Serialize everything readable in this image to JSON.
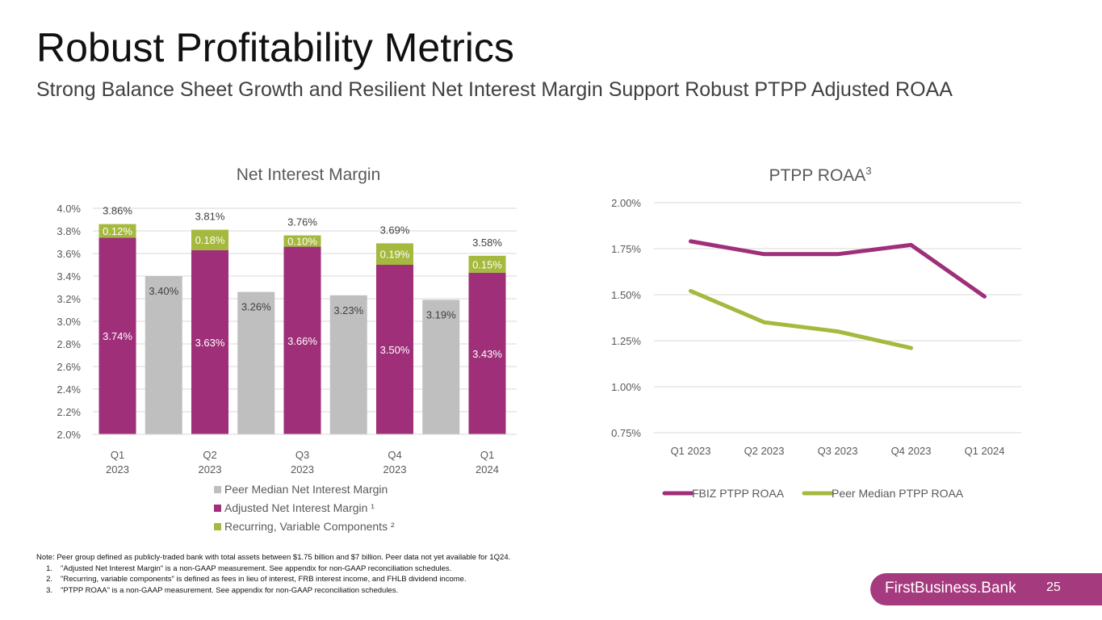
{
  "page": {
    "title": "Robust Profitability Metrics",
    "subtitle": "Strong Balance Sheet Growth and Resilient Net Interest Margin Support Robust PTPP Adjusted ROAA"
  },
  "colors": {
    "magenta": "#9e2f78",
    "green": "#a4b93d",
    "gray": "#bfbfbf",
    "brand_bar": "#a63a7e"
  },
  "chart_data": [
    {
      "type": "bar",
      "title": "Net Interest Margin",
      "ylim": [
        2.0,
        4.0
      ],
      "yticks": [
        "4.0%",
        "3.8%",
        "3.6%",
        "3.4%",
        "3.2%",
        "3.0%",
        "2.8%",
        "2.6%",
        "2.4%",
        "2.2%",
        "2.0%"
      ],
      "categories": [
        {
          "line1": "Q1",
          "line2": "2023"
        },
        {
          "line1": "Q2",
          "line2": "2023"
        },
        {
          "line1": "Q3",
          "line2": "2023"
        },
        {
          "line1": "Q4",
          "line2": "2023"
        },
        {
          "line1": "Q1",
          "line2": "2024"
        }
      ],
      "series": [
        {
          "name": "Peer Median Net Interest Margin",
          "color": "#bfbfbf",
          "values": [
            3.4,
            3.26,
            3.23,
            3.19,
            null
          ],
          "labels": [
            "3.40%",
            "3.26%",
            "3.23%",
            "3.19%",
            ""
          ]
        },
        {
          "name": "Adjusted Net Interest Margin ¹",
          "color": "#9e2f78",
          "values": [
            3.74,
            3.63,
            3.66,
            3.5,
            3.43
          ],
          "labels": [
            "3.74%",
            "3.63%",
            "3.66%",
            "3.50%",
            "3.43%"
          ]
        },
        {
          "name": "Recurring, Variable Components ²",
          "color": "#a4b93d",
          "values": [
            0.12,
            0.18,
            0.1,
            0.19,
            0.15
          ],
          "labels": [
            "0.12%",
            "0.18%",
            "0.10%",
            "0.19%",
            "0.15%"
          ]
        }
      ],
      "totals": [
        3.86,
        3.81,
        3.76,
        3.69,
        3.58
      ],
      "total_labels": [
        "3.86%",
        "3.81%",
        "3.76%",
        "3.69%",
        "3.58%"
      ]
    },
    {
      "type": "line",
      "title": "PTPP ROAA",
      "title_sup": "3",
      "ylim": [
        0.75,
        2.0
      ],
      "yticks": [
        "2.00%",
        "1.75%",
        "1.50%",
        "1.25%",
        "1.00%",
        "0.75%"
      ],
      "categories": [
        "Q1 2023",
        "Q2 2023",
        "Q3 2023",
        "Q4 2023",
        "Q1 2024"
      ],
      "series": [
        {
          "name": "FBIZ PTPP ROAA",
          "color": "#9e2f78",
          "values": [
            1.79,
            1.72,
            1.72,
            1.77,
            1.49
          ]
        },
        {
          "name": "Peer Median PTPP ROAA",
          "color": "#a4b93d",
          "values": [
            1.52,
            1.35,
            1.3,
            1.21,
            null
          ]
        }
      ]
    }
  ],
  "notes": {
    "main": "Note: Peer group defined as publicly-traded bank with total assets between $1.75 billion and $7 billion. Peer data not yet available for 1Q24.",
    "footnotes": [
      {
        "num": "1.",
        "text": "\"Adjusted Net Interest Margin\" is a non-GAAP measurement. See appendix for non-GAAP reconciliation schedules."
      },
      {
        "num": "2.",
        "text": "\"Recurring, variable components\" is defined as fees in lieu of interest, FRB interest income, and FHLB dividend income."
      },
      {
        "num": "3.",
        "text": "\"PTPP ROAA\" is a non-GAAP measurement. See appendix for non-GAAP reconciliation schedules."
      }
    ]
  },
  "footer": {
    "brand": "FirstBusiness.Bank",
    "page_number": "25"
  }
}
